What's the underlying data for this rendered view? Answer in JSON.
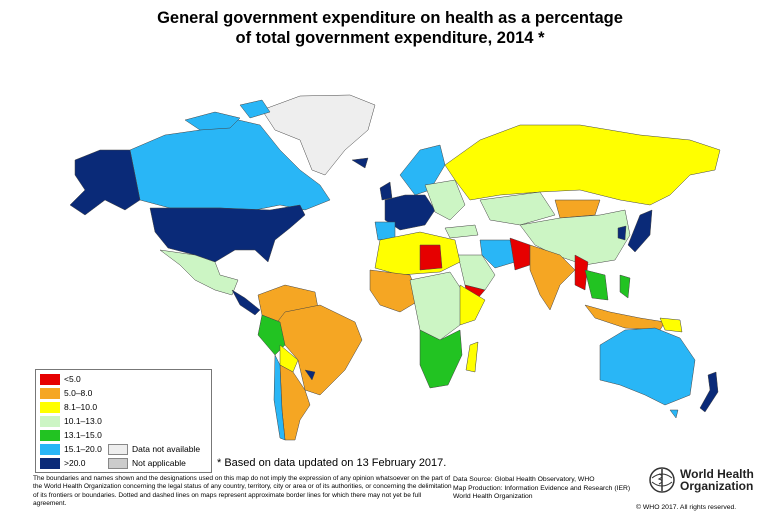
{
  "title": {
    "line1": "General government expenditure on health as a percentage",
    "line2": "of total government expenditure, 2014 *"
  },
  "legend": {
    "items": [
      {
        "label": "<5.0",
        "color": "#e60000"
      },
      {
        "label": "5.0–8.0",
        "color": "#f5a623"
      },
      {
        "label": "8.1–10.0",
        "color": "#ffff00"
      },
      {
        "label": "10.1–13.0",
        "color": "#ccf5c4"
      },
      {
        "label": "13.1–15.0",
        "color": "#22c322"
      },
      {
        "label": "15.1–20.0",
        "color": "#29b6f6"
      },
      {
        "label": ">20.0",
        "color": "#0a2a78"
      }
    ],
    "extra": [
      {
        "label": "Data not available",
        "color": "#eeeeee"
      },
      {
        "label": "Not applicable",
        "color": "#cccccc"
      }
    ]
  },
  "note": "* Based on data updated on 13 February 2017.",
  "disclaimer": "The boundaries and names shown and the designations used on this map do not imply the expression of any opinion whatsoever on the part of the World Health Organization concerning the legal status of any country, territory, city or area or of its authorities, or concerning the delimitation of its frontiers or boundaries.  Dotted and dashed lines on maps represent approximate border lines for which there may not yet be full agreement.",
  "source": {
    "line1": "Data Source: Global Health Observatory, WHO",
    "line2": "Map Production: Information Evidence and Research (IER)",
    "line3": "World Health Organization"
  },
  "logo": {
    "line1": "World Health",
    "line2": "Organization"
  },
  "copyright": "© WHO 2017. All rights reserved."
}
